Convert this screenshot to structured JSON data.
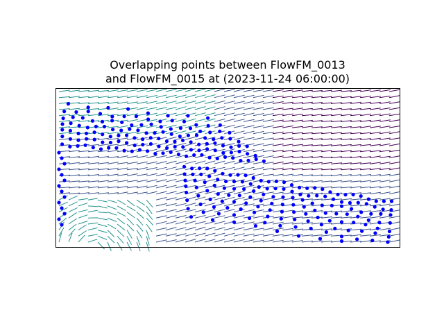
{
  "chart_data": {
    "type": "scatter",
    "title_lines": [
      "Overlapping points between FlowFM_0013",
      "and FlowFM_0015 at (2023-11-24 06:00:00)"
    ],
    "xlabel": "",
    "ylabel": "",
    "axis_ticks_shown": false,
    "grid": false,
    "layers": [
      {
        "kind": "quiver",
        "description_colormap": [
          "#440154",
          "#3b528b",
          "#21918c"
        ],
        "uniform_grid": true
      },
      {
        "kind": "points",
        "color": "#0000ff"
      }
    ],
    "overlap_rows": [
      {
        "row": 0,
        "count": 8
      },
      {
        "row": 1,
        "count": 14
      },
      {
        "row": 2,
        "count": 18
      },
      {
        "row": 3,
        "count": 22
      },
      {
        "row": 4,
        "count": 24
      },
      {
        "row": 5,
        "count": 25
      },
      {
        "row": 6,
        "count": 27
      },
      {
        "row": 7,
        "count": 28
      },
      {
        "row": 8,
        "count": 26
      },
      {
        "row": 9,
        "count": 22
      },
      {
        "row": 10,
        "count": 20
      },
      {
        "row": 11,
        "count": 18
      },
      {
        "row": 12,
        "count": 16
      },
      {
        "row": 13,
        "count": 14
      },
      {
        "row": 14,
        "count": 10
      }
    ]
  }
}
